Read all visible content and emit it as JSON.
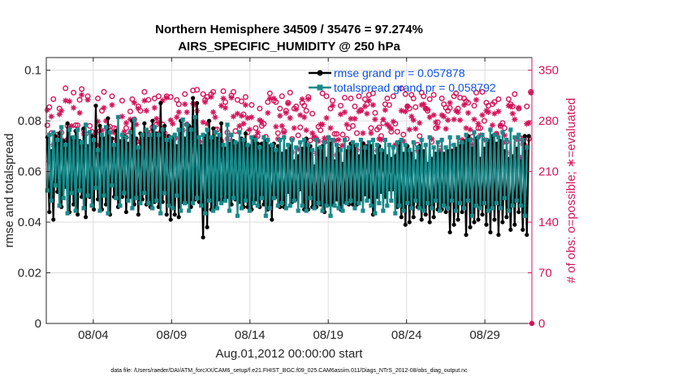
{
  "chart_data": {
    "type": "line",
    "title": "Northern Hemisphere 34509 / 35476 = 97.274%",
    "subtitle": "AIRS_SPECIFIC_HUMIDITY @ 250 hPa",
    "xlabel": "Aug.01,2012 00:00:00 start",
    "ylabel": "rmse and totalspread",
    "y2label": "# of obs: o=possible; ∗=evaluated",
    "footnote": "data file: /Users/raeder/DAI/ATM_forcXX/CAM6_setup/f.e21.FHIST_BGC.f09_025.CAM6assim.011/Diags_NTrS_2012-08/obs_diag_output.nc",
    "xlim": [
      1.0,
      32.0
    ],
    "ylim": [
      0,
      0.105
    ],
    "y2lim": [
      0,
      367.5
    ],
    "xticks": [
      4,
      9,
      14,
      19,
      24,
      29
    ],
    "xtick_labels": [
      "08/04",
      "08/09",
      "08/14",
      "08/19",
      "08/24",
      "08/29"
    ],
    "yticks": [
      0,
      0.02,
      0.04,
      0.06,
      0.08,
      0.1
    ],
    "ytick_labels": [
      "0",
      "0.02",
      "0.04",
      "0.06",
      "0.08",
      "0.1"
    ],
    "y2ticks": [
      0,
      70,
      140,
      210,
      280,
      350
    ],
    "y2tick_labels": [
      "0",
      "70",
      "140",
      "210",
      "280",
      "350"
    ],
    "grid": true,
    "legend_position": "top-right",
    "series": [
      {
        "name": "rmse",
        "legend_label": "rmse grand pr = 0.057878",
        "color": "#000000",
        "axis": "left",
        "marker": "dot",
        "values": [
          0.0735,
          0.044,
          0.068,
          0.041,
          0.074,
          0.052,
          0.075,
          0.046,
          0.072,
          0.054,
          0.079,
          0.044,
          0.073,
          0.047,
          0.076,
          0.043,
          0.072,
          0.05,
          0.077,
          0.042,
          0.07,
          0.05,
          0.074,
          0.045,
          0.086,
          0.049,
          0.078,
          0.045,
          0.073,
          0.047,
          0.081,
          0.043,
          0.073,
          0.05,
          0.076,
          0.046,
          0.072,
          0.05,
          0.074,
          0.044,
          0.071,
          0.05,
          0.08,
          0.047,
          0.073,
          0.043,
          0.075,
          0.049,
          0.079,
          0.047,
          0.073,
          0.046,
          0.08,
          0.048,
          0.075,
          0.046,
          0.087,
          0.048,
          0.078,
          0.043,
          0.074,
          0.041,
          0.073,
          0.043,
          0.07,
          0.042,
          0.08,
          0.048,
          0.073,
          0.048,
          0.078,
          0.046,
          0.089,
          0.049,
          0.087,
          0.048,
          0.07,
          0.034,
          0.074,
          0.038,
          0.08,
          0.045,
          0.077,
          0.046,
          0.073,
          0.049,
          0.079,
          0.049,
          0.069,
          0.05,
          0.071,
          0.047,
          0.072,
          0.049,
          0.071,
          0.048,
          0.073,
          0.046,
          0.075,
          0.046,
          0.07,
          0.045,
          0.073,
          0.049,
          0.071,
          0.046,
          0.071,
          0.047,
          0.072,
          0.045,
          0.07,
          0.041,
          0.071,
          0.05,
          0.07,
          0.046,
          0.067,
          0.046,
          0.068,
          0.052,
          0.07,
          0.048,
          0.064,
          0.049,
          0.066,
          0.053,
          0.069,
          0.045,
          0.073,
          0.045,
          0.07,
          0.046,
          0.062,
          0.046,
          0.069,
          0.047,
          0.07,
          0.044,
          0.065,
          0.047,
          0.071,
          0.047,
          0.064,
          0.049,
          0.069,
          0.045,
          0.063,
          0.048,
          0.068,
          0.047,
          0.071,
          0.047,
          0.07,
          0.047,
          0.066,
          0.049,
          0.071,
          0.051,
          0.07,
          0.05,
          0.07,
          0.043,
          0.066,
          0.05,
          0.07,
          0.052,
          0.068,
          0.05,
          0.066,
          0.053,
          0.065,
          0.053,
          0.066,
          0.046,
          0.071,
          0.042,
          0.067,
          0.039,
          0.07,
          0.04,
          0.067,
          0.042,
          0.064,
          0.046,
          0.07,
          0.041,
          0.068,
          0.043,
          0.063,
          0.04,
          0.065,
          0.042,
          0.067,
          0.045,
          0.067,
          0.045,
          0.067,
          0.044,
          0.068,
          0.036,
          0.068,
          0.039,
          0.069,
          0.041,
          0.07,
          0.044,
          0.072,
          0.035,
          0.074,
          0.038,
          0.069,
          0.04,
          0.073,
          0.041,
          0.065,
          0.043,
          0.069,
          0.039,
          0.072,
          0.036,
          0.074,
          0.041,
          0.071,
          0.035,
          0.072,
          0.04,
          0.068,
          0.042,
          0.065,
          0.037,
          0.066,
          0.039,
          0.069,
          0.044,
          0.064,
          0.037,
          0.074,
          0.035,
          0.074
        ]
      },
      {
        "name": "totalspread",
        "legend_label": "totalspread grand pr = 0.058792",
        "color": "#1b8a8a",
        "axis": "left",
        "marker": "square",
        "values": [
          0.0525,
          0.0745,
          0.0485,
          0.0755,
          0.0545,
          0.0725,
          0.0465,
          0.0775,
          0.0495,
          0.0705,
          0.0435,
          0.0765,
          0.0515,
          0.0735,
          0.0445,
          0.0765,
          0.0525,
          0.0715,
          0.0455,
          0.0785,
          0.0505,
          0.0755,
          0.0465,
          0.0725,
          0.0535,
          0.0685,
          0.0445,
          0.0745,
          0.0505,
          0.0775,
          0.0435,
          0.0755,
          0.0545,
          0.0705,
          0.0495,
          0.0815,
          0.0465,
          0.0745,
          0.0515,
          0.0735,
          0.0485,
          0.0755,
          0.0455,
          0.0805,
          0.0495,
          0.0695,
          0.0475,
          0.0745,
          0.0515,
          0.0765,
          0.0475,
          0.0745,
          0.0455,
          0.0775,
          0.0485,
          0.0745,
          0.0435,
          0.0765,
          0.0515,
          0.0725,
          0.0465,
          0.0735,
          0.0455,
          0.0745,
          0.0505,
          0.0765,
          0.0445,
          0.0805,
          0.0475,
          0.0785,
          0.0445,
          0.0765,
          0.0475,
          0.0815,
          0.0495,
          0.0735,
          0.0465,
          0.0745,
          0.0435,
          0.0765,
          0.0485,
          0.0735,
          0.0445,
          0.0755,
          0.0455,
          0.0745,
          0.0475,
          0.0705,
          0.0485,
          0.0785,
          0.0445,
          0.0745,
          0.0495,
          0.0715,
          0.0425,
          0.0755,
          0.0455,
          0.0725,
          0.0485,
          0.0705,
          0.0445,
          0.0735,
          0.0475,
          0.0725,
          0.0465,
          0.0695,
          0.0495,
          0.0735,
          0.0425,
          0.0725,
          0.0455,
          0.0705,
          0.0495,
          0.0685,
          0.0465,
          0.0725,
          0.0475,
          0.0735,
          0.0455,
          0.0705,
          0.0465,
          0.0725,
          0.0485,
          0.0695,
          0.0445,
          0.0715,
          0.0465,
          0.0725,
          0.0445,
          0.0705,
          0.0495,
          0.0685,
          0.0455,
          0.0725,
          0.0475,
          0.0695,
          0.0445,
          0.0715,
          0.0465,
          0.0735,
          0.0425,
          0.0725,
          0.0465,
          0.0705,
          0.0455,
          0.0685,
          0.0445,
          0.0725,
          0.0475,
          0.0695,
          0.0485,
          0.0715,
          0.0455,
          0.0705,
          0.0475,
          0.0725,
          0.0445,
          0.0695,
          0.0485,
          0.0715,
          0.0465,
          0.0725,
          0.0435,
          0.0705,
          0.0475,
          0.0685,
          0.0445,
          0.0725,
          0.0465,
          0.0705,
          0.0485,
          0.0695,
          0.0435,
          0.0715,
          0.0465,
          0.0725,
          0.0445,
          0.0705,
          0.0475,
          0.0685,
          0.0455,
          0.0715,
          0.0485,
          0.0695,
          0.0455,
          0.0725,
          0.0445,
          0.0705,
          0.0475,
          0.0735,
          0.0455,
          0.0695,
          0.0485,
          0.0715,
          0.0445,
          0.0725,
          0.0465,
          0.0695,
          0.0455,
          0.0735,
          0.0485,
          0.0705,
          0.0445,
          0.0735,
          0.0475,
          0.0715,
          0.0455,
          0.0745,
          0.0485,
          0.0725,
          0.0425,
          0.0755,
          0.0465,
          0.0735,
          0.0455,
          0.0745,
          0.0475,
          0.0725,
          0.0445,
          0.0765,
          0.0455,
          0.0745,
          0.0475,
          0.0735,
          0.0455,
          0.0755,
          0.0495,
          0.0725,
          0.0445,
          0.0765,
          0.0465,
          0.0735,
          0.0485,
          0.0745,
          0.0465,
          0.0725,
          0.0425,
          0.0695
        ]
      },
      {
        "name": "obs possible",
        "color": "#d4145a",
        "axis": "right",
        "marker": "circle",
        "values": [
          274,
          299,
          263,
          310,
          252,
          261,
          297,
          264,
          242,
          325,
          273,
          253,
          256,
          319,
          274,
          274,
          309,
          324,
          268,
          262,
          314,
          273,
          265,
          257,
          247,
          311,
          266,
          294,
          320,
          255,
          271,
          272,
          314,
          270,
          269,
          244,
          250,
          308,
          249,
          270,
          260,
          293,
          310,
          282,
          251,
          300,
          294,
          250,
          320,
          262,
          309,
          264,
          271,
          311,
          275,
          314,
          264,
          275,
          263,
          314,
          257,
          313,
          242,
          256,
          309,
          303,
          258,
          252,
          317,
          275,
          271,
          260,
          322,
          271,
          323,
          251,
          249,
          317,
          309,
          313,
          255,
          317,
          320,
          268,
          268,
          254,
          252,
          321,
          306,
          264,
          256,
          315,
          320,
          266,
          309,
          269,
          307,
          289,
          313,
          264,
          244,
          302,
          250,
          270,
          259,
          297,
          273,
          276,
          258,
          306,
          318,
          245,
          308,
          306,
          263,
          297,
          314,
          266,
          294,
          305,
          319,
          255,
          297,
          300,
          260,
          271,
          305,
          301,
          294,
          313,
          253,
          290,
          256,
          255,
          272,
          267,
          318,
          251,
          314,
          252,
          297,
          308,
          262,
          262,
          244,
          301,
          261,
          312,
          255,
          270,
          311,
          273,
          300,
          263,
          314,
          295,
          248,
          310,
          303,
          316,
          270,
          318,
          291,
          268,
          271,
          259,
          277,
          303,
          311,
          302,
          265,
          314,
          276,
          265,
          250,
          325,
          261,
          317,
          300,
          297,
          316,
          311,
          299,
          247,
          259,
          319,
          314,
          297,
          294,
          310,
          251,
          316,
          270,
          278,
          248,
          311,
          303,
          298,
          294,
          298,
          244,
          314,
          318,
          297,
          312,
          250,
          311,
          307,
          305,
          254,
          258,
          301,
          319,
          270,
          270,
          320,
          280,
          305,
          301,
          252,
          303,
          306,
          262,
          310,
          273,
          277,
          270,
          251,
          310,
          303,
          300,
          317,
          255,
          297,
          256,
          255,
          246,
          300,
          255,
          320
        ]
      },
      {
        "name": "obs evaluated",
        "color": "#d4145a",
        "axis": "right",
        "marker": "asterisk",
        "values": [
          295,
          224,
          286,
          247,
          250,
          257,
          289,
          294,
          253,
          308,
          254,
          307,
          273,
          298,
          237,
          235,
          291,
          316,
          262,
          236,
          309,
          244,
          258,
          242,
          264,
          279,
          234,
          267,
          298,
          280,
          232,
          236,
          302,
          264,
          254,
          247,
          234,
          286,
          265,
          277,
          241,
          282,
          268,
          305,
          275,
          297,
          251,
          244,
          308,
          294,
          263,
          241,
          243,
          298,
          283,
          277,
          255,
          308,
          245,
          312,
          234,
          281,
          276,
          258,
          285,
          292,
          249,
          267,
          303,
          292,
          234,
          237,
          304,
          302,
          294,
          252,
          234,
          278,
          306,
          276,
          235,
          313,
          292,
          285,
          237,
          246,
          301,
          311,
          298,
          255,
          226,
          312,
          286,
          234,
          290,
          273,
          287,
          276,
          302,
          284,
          268,
          285,
          256,
          258,
          264,
          281,
          279,
          238,
          240,
          291,
          311,
          241,
          311,
          272,
          255,
          287,
          273,
          264,
          291,
          304,
          284,
          237,
          270,
          296,
          241,
          288,
          310,
          285,
          267,
          310,
          222,
          263,
          258,
          235,
          252,
          275,
          275,
          256,
          284,
          256,
          270,
          301,
          253,
          233,
          254,
          289,
          246,
          292,
          275,
          232,
          283,
          245,
          283,
          240,
          293,
          294,
          263,
          300,
          290,
          308,
          263,
          302,
          282,
          239,
          255,
          254,
          282,
          295,
          275,
          272,
          269,
          279,
          247,
          233,
          238,
          294,
          252,
          293,
          300,
          268,
          286,
          281,
          269,
          239,
          277,
          302,
          303,
          297,
          296,
          285,
          255,
          288,
          278,
          271,
          239,
          288,
          286,
          269,
          281,
          305,
          228,
          282,
          294,
          292,
          281,
          254,
          302,
          270,
          291,
          268,
          247,
          282,
          309,
          276,
          260,
          288,
          254,
          294,
          292,
          238,
          274,
          290,
          262,
          293,
          274,
          250,
          260,
          236,
          301,
          300,
          290,
          282,
          256,
          298,
          229,
          248,
          238,
          276,
          277,
          319
        ]
      }
    ]
  }
}
